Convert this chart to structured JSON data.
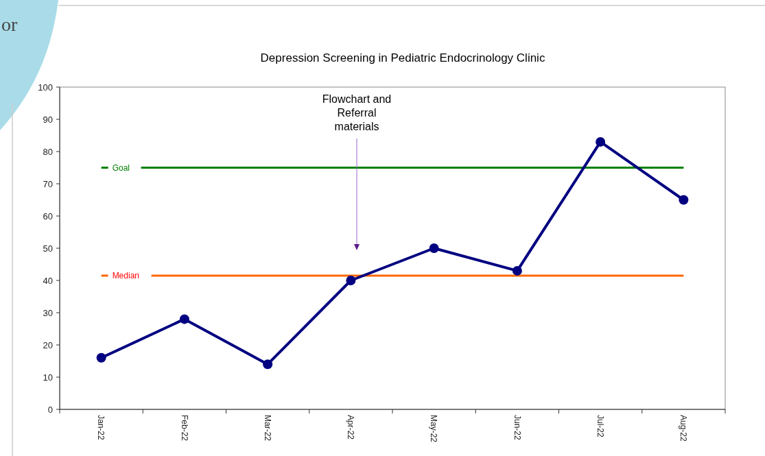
{
  "chart_data": {
    "type": "line",
    "title": "Depression Screening in Pediatric Endocrinology Clinic",
    "categories": [
      "Jan-22",
      "Feb-22",
      "Mar-22",
      "Apr-22",
      "May-22",
      "Jun-22",
      "Jul-22",
      "Aug-22"
    ],
    "series": [
      {
        "color": "#000080",
        "values": [
          16,
          28,
          14,
          40,
          50,
          43,
          83,
          65
        ]
      }
    ],
    "marker": "circle",
    "line_style": "solid",
    "ylim": [
      0,
      100
    ],
    "yticks": [
      0,
      10,
      20,
      30,
      40,
      50,
      60,
      70,
      80,
      90,
      100
    ],
    "ref_lines": [
      {
        "axis": "y",
        "value": 75,
        "label": "Goal",
        "color": "#008000"
      },
      {
        "axis": "y",
        "value": 41.5,
        "label": "Median",
        "color": "#ff6600"
      }
    ],
    "annotations": [
      "Flowchart and\nReferral\nmaterials",
      "or"
    ],
    "grid": false
  }
}
